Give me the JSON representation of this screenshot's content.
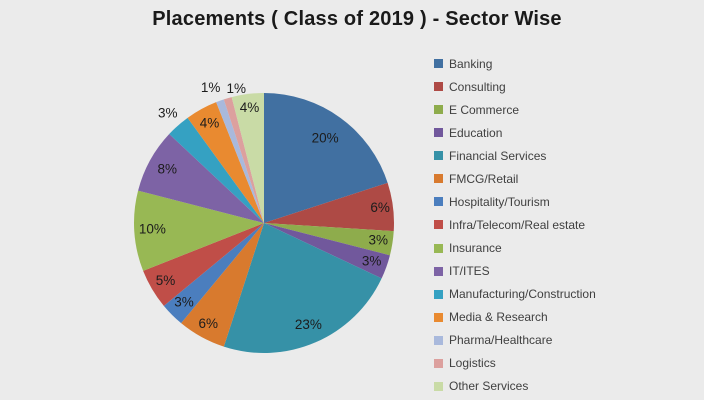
{
  "title": "Placements ( Class of 2019 ) - Sector Wise",
  "colors": {
    "background": "#EBEBEB",
    "title_text": "#1A1A1A",
    "slice_label_text": "#1C1C1C",
    "legend_text": "#404040"
  },
  "chart_data": {
    "type": "pie",
    "title": "Placements ( Class of 2019 ) - Sector Wise",
    "unit": "%",
    "total": 100,
    "legend_position": "right",
    "start_angle_deg": 0,
    "direction": "clockwise",
    "slices": [
      {
        "label": "Banking",
        "value": 20,
        "pct_label": "20%",
        "color": "#4170A1",
        "label_r": 0.8
      },
      {
        "label": "Consulting",
        "value": 6,
        "pct_label": "6%",
        "color": "#AE4A45",
        "label_r": 0.9
      },
      {
        "label": "E Commerce",
        "value": 3,
        "pct_label": "3%",
        "color": "#8EAC4C",
        "label_r": 0.89
      },
      {
        "label": "Education",
        "value": 3,
        "pct_label": "3%",
        "color": "#71589C",
        "label_r": 0.88
      },
      {
        "label": "Financial Services",
        "value": 23,
        "pct_label": "23%",
        "color": "#3691A7",
        "label_r": 0.86
      },
      {
        "label": "FMCG/Retail",
        "value": 6,
        "pct_label": "6%",
        "color": "#D87A2E",
        "label_r": 0.89
      },
      {
        "label": "Hospitality/Tourism",
        "value": 3,
        "pct_label": "3%",
        "color": "#4B7EBE",
        "label_r": 0.87
      },
      {
        "label": "Infra/Telecom/Real estate",
        "value": 5,
        "pct_label": "5%",
        "color": "#C04E48",
        "label_r": 0.88
      },
      {
        "label": "Insurance",
        "value": 10,
        "pct_label": "10%",
        "color": "#98B854",
        "label_r": 0.86
      },
      {
        "label": "IT/ITES",
        "value": 8,
        "pct_label": "8%",
        "color": "#7D63A5",
        "label_r": 0.85
      },
      {
        "label": "Manufacturing/Construction",
        "value": 3,
        "pct_label": "3%",
        "color": "#35A1C2",
        "label_r": 1.12
      },
      {
        "label": "Media & Research",
        "value": 4,
        "pct_label": "4%",
        "color": "#E98A30",
        "label_r": 0.87
      },
      {
        "label": "Pharma/Healthcare",
        "value": 1,
        "pct_label": "1%",
        "color": "#A9B9DC",
        "label_r": 1.1,
        "label_nudge": [
          -5,
          0
        ]
      },
      {
        "label": "Logistics",
        "value": 1,
        "pct_label": "1%",
        "color": "#DCA09E",
        "label_r": 1.07,
        "label_nudge": [
          11,
          0
        ]
      },
      {
        "label": "Other Services",
        "value": 4,
        "pct_label": "4%",
        "color": "#C9DBA6",
        "label_r": 0.89
      }
    ]
  }
}
